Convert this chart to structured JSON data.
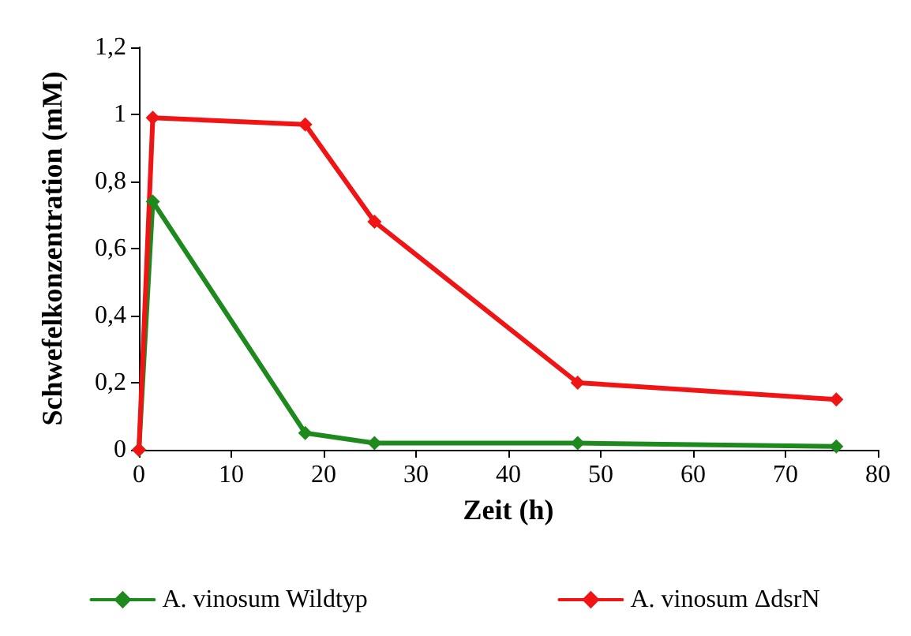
{
  "chart_data": {
    "type": "line",
    "xlabel": "Zeit (h)",
    "ylabel": "Schwefelkonzentration (mM)",
    "xlim": [
      0,
      80
    ],
    "xticks": [
      0,
      10,
      20,
      30,
      40,
      50,
      60,
      70,
      80
    ],
    "ylim": [
      0,
      1.2
    ],
    "yticks": [
      0,
      {
        "value": 0.2,
        "label": "0,2"
      },
      {
        "value": 0.4,
        "label": "0,4"
      },
      {
        "value": 0.6,
        "label": "0,6"
      },
      {
        "value": 0.8,
        "label": "0,8"
      },
      1,
      {
        "value": 1.2,
        "label": "1,2"
      }
    ],
    "grid": false,
    "legend": "bottom",
    "marker": "diamond",
    "line_style": "solid",
    "series": [
      {
        "name": "A. vinosum Wildtyp",
        "color": "#1e8a1e",
        "x": [
          0,
          1.5,
          18,
          25.5,
          47.5,
          75.5
        ],
        "values": [
          0,
          0.74,
          0.05,
          0.02,
          0.02,
          0.01
        ]
      },
      {
        "name": "A. vinosum ΔdsrN",
        "color": "#f01414",
        "x": [
          0,
          1.5,
          18,
          25.5,
          47.5,
          75.5
        ],
        "values": [
          0,
          0.99,
          0.97,
          0.68,
          0.2,
          0.15
        ]
      }
    ]
  }
}
